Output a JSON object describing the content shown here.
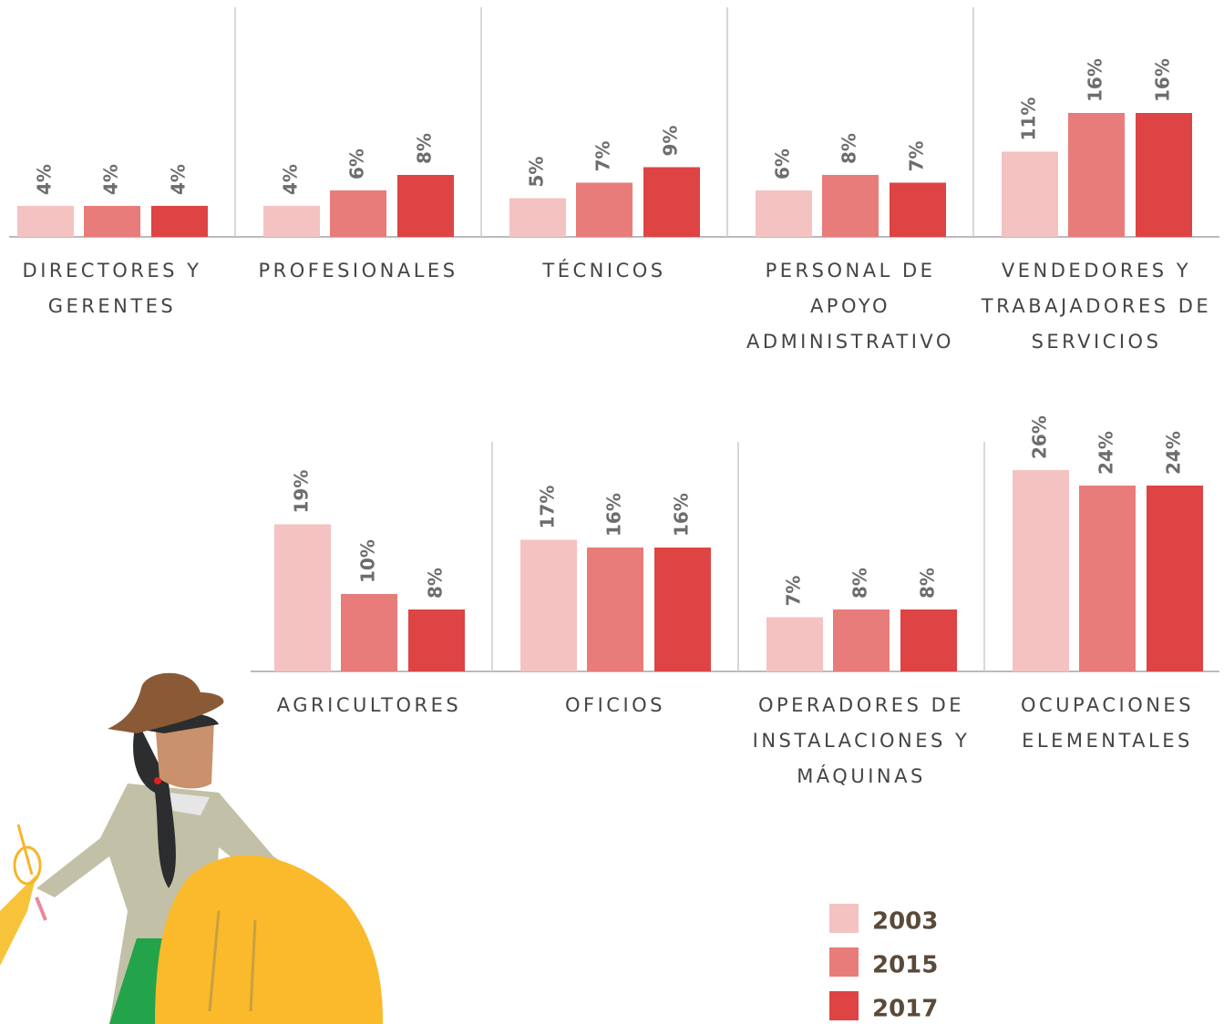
{
  "chart_data": {
    "type": "bar",
    "categories": [
      "DIRECTORES Y GERENTES",
      "PROFESIONALES",
      "TÉCNICOS",
      "PERSONAL DE APOYO ADMINISTRATIVO",
      "VENDEDORES Y TRABAJADORES DE SERVICIOS",
      "AGRICULTORES",
      "OFICIOS",
      "OPERADORES DE INSTALACIONES Y MÁQUINAS",
      "OCUPACIONES ELEMENTALES"
    ],
    "series": [
      {
        "name": "2003",
        "color": "#f5c2c2",
        "values": [
          4,
          4,
          5,
          6,
          11,
          19,
          17,
          7,
          26
        ],
        "value_labels": [
          "4%",
          "4%",
          "5%",
          "6%",
          "11%",
          "19%",
          "17%",
          "7%",
          "26%"
        ]
      },
      {
        "name": "2015",
        "color": "#e87c7a",
        "values": [
          4,
          6,
          7,
          8,
          16,
          10,
          16,
          8,
          24
        ],
        "value_labels": [
          "4%",
          "6%",
          "7%",
          "8%",
          "16%",
          "10%",
          "16%",
          "8%",
          "24%"
        ]
      },
      {
        "name": "2017",
        "color": "#de4444",
        "values": [
          4,
          8,
          9,
          7,
          16,
          8,
          16,
          8,
          24
        ],
        "value_labels": [
          "4%",
          "8%",
          "9%",
          "7%",
          "16%",
          "8%",
          "16%",
          "8%",
          "24%"
        ]
      }
    ]
  }
}
